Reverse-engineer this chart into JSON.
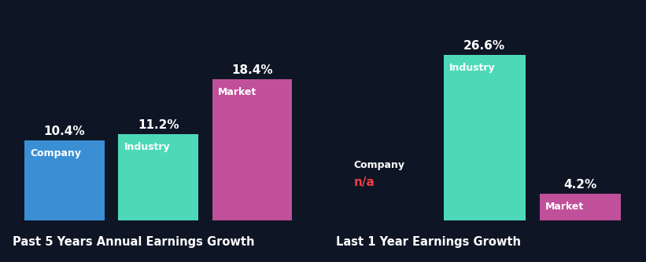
{
  "background_color": "#0e1525",
  "chart1_title": "Past 5 Years Annual Earnings Growth",
  "chart2_title": "Last 1 Year Earnings Growth",
  "chart1_bars": [
    {
      "label": "Company",
      "value": 10.4,
      "color": "#3a8fd4"
    },
    {
      "label": "Industry",
      "value": 11.2,
      "color": "#4dd9b8"
    },
    {
      "label": "Market",
      "value": 18.4,
      "color": "#c0509a"
    }
  ],
  "chart2_bars": [
    {
      "label": "Company",
      "value": null,
      "color": null
    },
    {
      "label": "Industry",
      "value": 26.6,
      "color": "#4dd9b8"
    },
    {
      "label": "Market",
      "value": 4.2,
      "color": "#c0509a"
    }
  ],
  "na_color": "#e84040",
  "text_color": "#ffffff",
  "bar_width": 0.85,
  "title_fontsize": 10.5,
  "label_fontsize": 9,
  "value_fontsize": 11,
  "chart1_ylim": 26.0,
  "chart2_ylim": 32.0
}
